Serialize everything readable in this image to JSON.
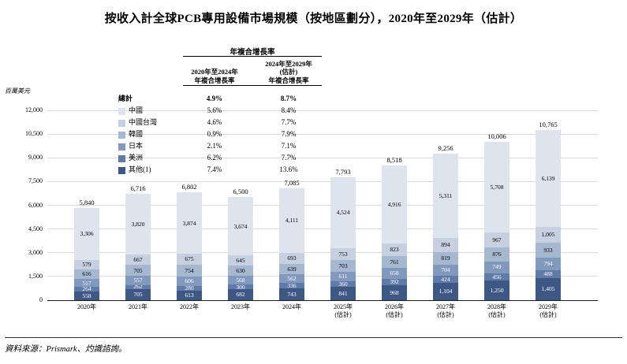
{
  "page": {
    "title": "按收入計全球PCB專用設備市場規模（按地區劃分），2020年至2029年（估計）",
    "source": "資料來源：Prismark、灼識諮詢。"
  },
  "cagr_table": {
    "title": "年複合增長率",
    "col1": [
      "2020年至2024年",
      "年複合增長率"
    ],
    "col2": [
      "2024年至2029年",
      "(估計)",
      "年複合增長率"
    ],
    "total_row": {
      "label": "總計",
      "cagr_2020_2024": "4.9%",
      "cagr_2024_2029": "8.7%"
    }
  },
  "chart_data": {
    "type": "bar",
    "stacked": true,
    "title": "按收入計全球PCB專用設備市場規模（按地區劃分），2020年至2029年（估計）",
    "ylabel": "百萬美元",
    "ylim": [
      0,
      12000
    ],
    "ytick_step": 1500,
    "grid": true,
    "legend_position": "upper-left",
    "categories": [
      [
        "2020年"
      ],
      [
        "2021年"
      ],
      [
        "2022年"
      ],
      [
        "2023年"
      ],
      [
        "2024年"
      ],
      [
        "2025年",
        "(估計)"
      ],
      [
        "2026年",
        "(估計)"
      ],
      [
        "2027年",
        "(估計)"
      ],
      [
        "2028年",
        "(估計)"
      ],
      [
        "2029年",
        "(估計)"
      ]
    ],
    "totals": [
      5840,
      6716,
      6802,
      6500,
      7085,
      7793,
      8518,
      9256,
      10006,
      10765
    ],
    "series": [
      {
        "name": "中國",
        "color": "#dde4ee",
        "label_color": "#000000",
        "cagr_2020_2024": "5.6%",
        "cagr_2024_2029": "8.4%",
        "values": [
          3306,
          3820,
          3874,
          3674,
          4111,
          4524,
          4916,
          5311,
          5708,
          6139
        ]
      },
      {
        "name": "中國台灣",
        "color": "#c6d0e0",
        "label_color": "#000000",
        "cagr_2020_2024": "4.6%",
        "cagr_2024_2029": "7.7%",
        "values": [
          579,
          667,
          675,
          645,
          693,
          753,
          823,
          894,
          967,
          1005
        ]
      },
      {
        "name": "韓國",
        "color": "#a6b8d0",
        "label_color": "#000000",
        "cagr_2020_2024": "0.9%",
        "cagr_2024_2029": "7.9%",
        "values": [
          616,
          705,
          754,
          630,
          639,
          703,
          761,
          819,
          876,
          933
        ]
      },
      {
        "name": "日本",
        "color": "#8199bc",
        "label_color": "#ffffff",
        "cagr_2020_2024": "2.1%",
        "cagr_2024_2029": "7.1%",
        "values": [
          517,
          557,
          606,
          568,
          562,
          611,
          658,
          704,
          749,
          794
        ]
      },
      {
        "name": "美洲",
        "color": "#607ba7",
        "label_color": "#ffffff",
        "cagr_2020_2024": "6.2%",
        "cagr_2024_2029": "7.7%",
        "values": [
          264,
          262,
          280,
          300,
          336,
          360,
          392,
          424,
          456,
          488
        ]
      },
      {
        "name": "其他(1)",
        "color": "#3e5886",
        "label_color": "#ffffff",
        "cagr_2020_2024": "7.4%",
        "cagr_2024_2029": "13.6%",
        "values": [
          558,
          705,
          613,
          682,
          743,
          841,
          968,
          1104,
          1250,
          1405
        ]
      }
    ]
  }
}
